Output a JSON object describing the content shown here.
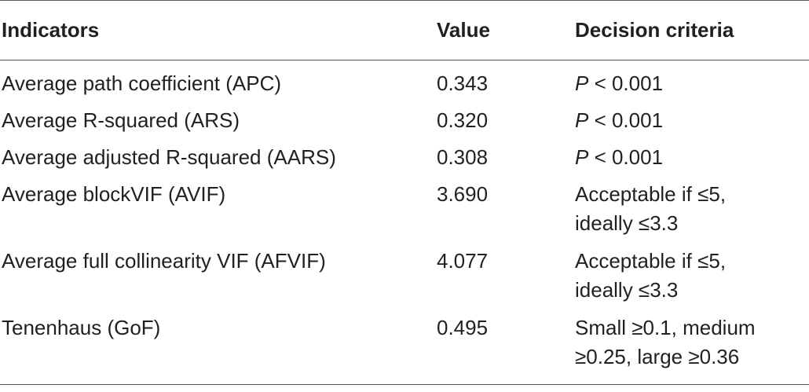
{
  "table": {
    "headers": [
      "Indicators",
      "Value",
      "Decision criteria"
    ],
    "rows": [
      {
        "indicator": "Average path coefficient (APC)",
        "value": "0.343",
        "p": "P",
        "criteria": " < 0.001"
      },
      {
        "indicator": "Average R-squared (ARS)",
        "value": "0.320",
        "p": "P",
        "criteria": " < 0.001"
      },
      {
        "indicator": "Average adjusted R-squared (AARS)",
        "value": "0.308",
        "p": "P",
        "criteria": " < 0.001"
      },
      {
        "indicator": "Average blockVIF (AVIF)",
        "value": "3.690",
        "criteria_line1": "Acceptable if ≤5,",
        "criteria_line2": "ideally ≤3.3"
      },
      {
        "indicator": "Average full collinearity VIF (AFVIF)",
        "value": "4.077",
        "criteria_line1": "Acceptable if ≤5,",
        "criteria_line2": "ideally ≤3.3"
      },
      {
        "indicator": "Tenenhaus (GoF)",
        "value": "0.495",
        "criteria_line1": "Small ≥0.1, medium",
        "criteria_line2": "≥0.25, large ≥0.36"
      }
    ]
  }
}
